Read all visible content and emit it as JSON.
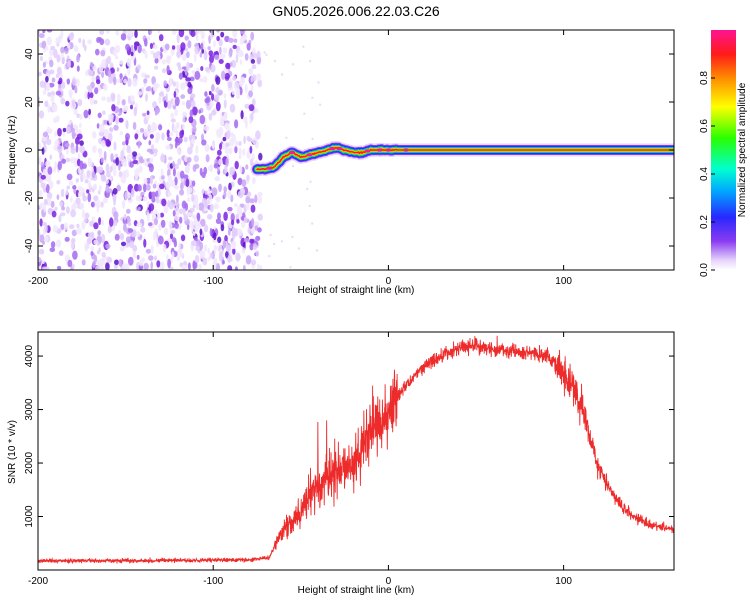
{
  "title": "GN05.2026.006.22.03.C26",
  "colors": {
    "series": "#ee2b2b",
    "frame": "#000000",
    "noise": "#7a22e0"
  },
  "chart_data": [
    {
      "type": "heatmap",
      "xlabel": "Height of straight line (km)",
      "ylabel": "Frequency (Hz)",
      "xlim": [
        -200,
        163
      ],
      "ylim": [
        -50,
        50
      ],
      "xticks": [
        -200,
        -100,
        0,
        100
      ],
      "yticks": [
        -40,
        -20,
        0,
        20,
        40
      ],
      "colorbar": {
        "label": "Normalized spectral amplitude",
        "range": [
          0,
          1
        ],
        "ticks": [
          "0.0",
          "0.2",
          "0.4",
          "0.6",
          "0.8"
        ]
      },
      "noise_region_x": [
        -200,
        -73
      ],
      "signal_ridge": {
        "x": [
          -75,
          -70,
          -65,
          -60,
          -55,
          -50,
          -45,
          -40,
          -35,
          -30,
          -25,
          -20,
          -15,
          -10,
          -5,
          0,
          20,
          50,
          100,
          163
        ],
        "freq": [
          -8,
          -8,
          -7,
          -3,
          -1,
          -3,
          -2,
          -1,
          0,
          1,
          0,
          -1,
          -1,
          0,
          0,
          0,
          0,
          0,
          0,
          0
        ]
      }
    },
    {
      "type": "line",
      "xlabel": "Height of straight line (km)",
      "ylabel": "SNR (10 * v/v)",
      "xlim": [
        -200,
        163
      ],
      "ylim": [
        0,
        4450
      ],
      "xticks": [
        -200,
        -100,
        0,
        100
      ],
      "yticks": [
        1000,
        2000,
        3000,
        4000
      ],
      "envelope": {
        "x": [
          -200,
          -160,
          -120,
          -80,
          -68,
          -62,
          -55,
          -50,
          -45,
          -40,
          -35,
          -30,
          -25,
          -20,
          -15,
          -10,
          -5,
          0,
          5,
          10,
          20,
          30,
          40,
          50,
          60,
          70,
          80,
          90,
          95,
          100,
          105,
          110,
          115,
          120,
          130,
          140,
          150,
          163
        ],
        "y": [
          170,
          175,
          180,
          190,
          230,
          650,
          900,
          1050,
          1400,
          1500,
          1700,
          1800,
          1900,
          2100,
          2300,
          2600,
          2800,
          3000,
          3250,
          3450,
          3800,
          4000,
          4150,
          4200,
          4150,
          4100,
          4050,
          4000,
          3900,
          3700,
          3450,
          3100,
          2500,
          1900,
          1300,
          1000,
          850,
          750
        ]
      }
    }
  ]
}
